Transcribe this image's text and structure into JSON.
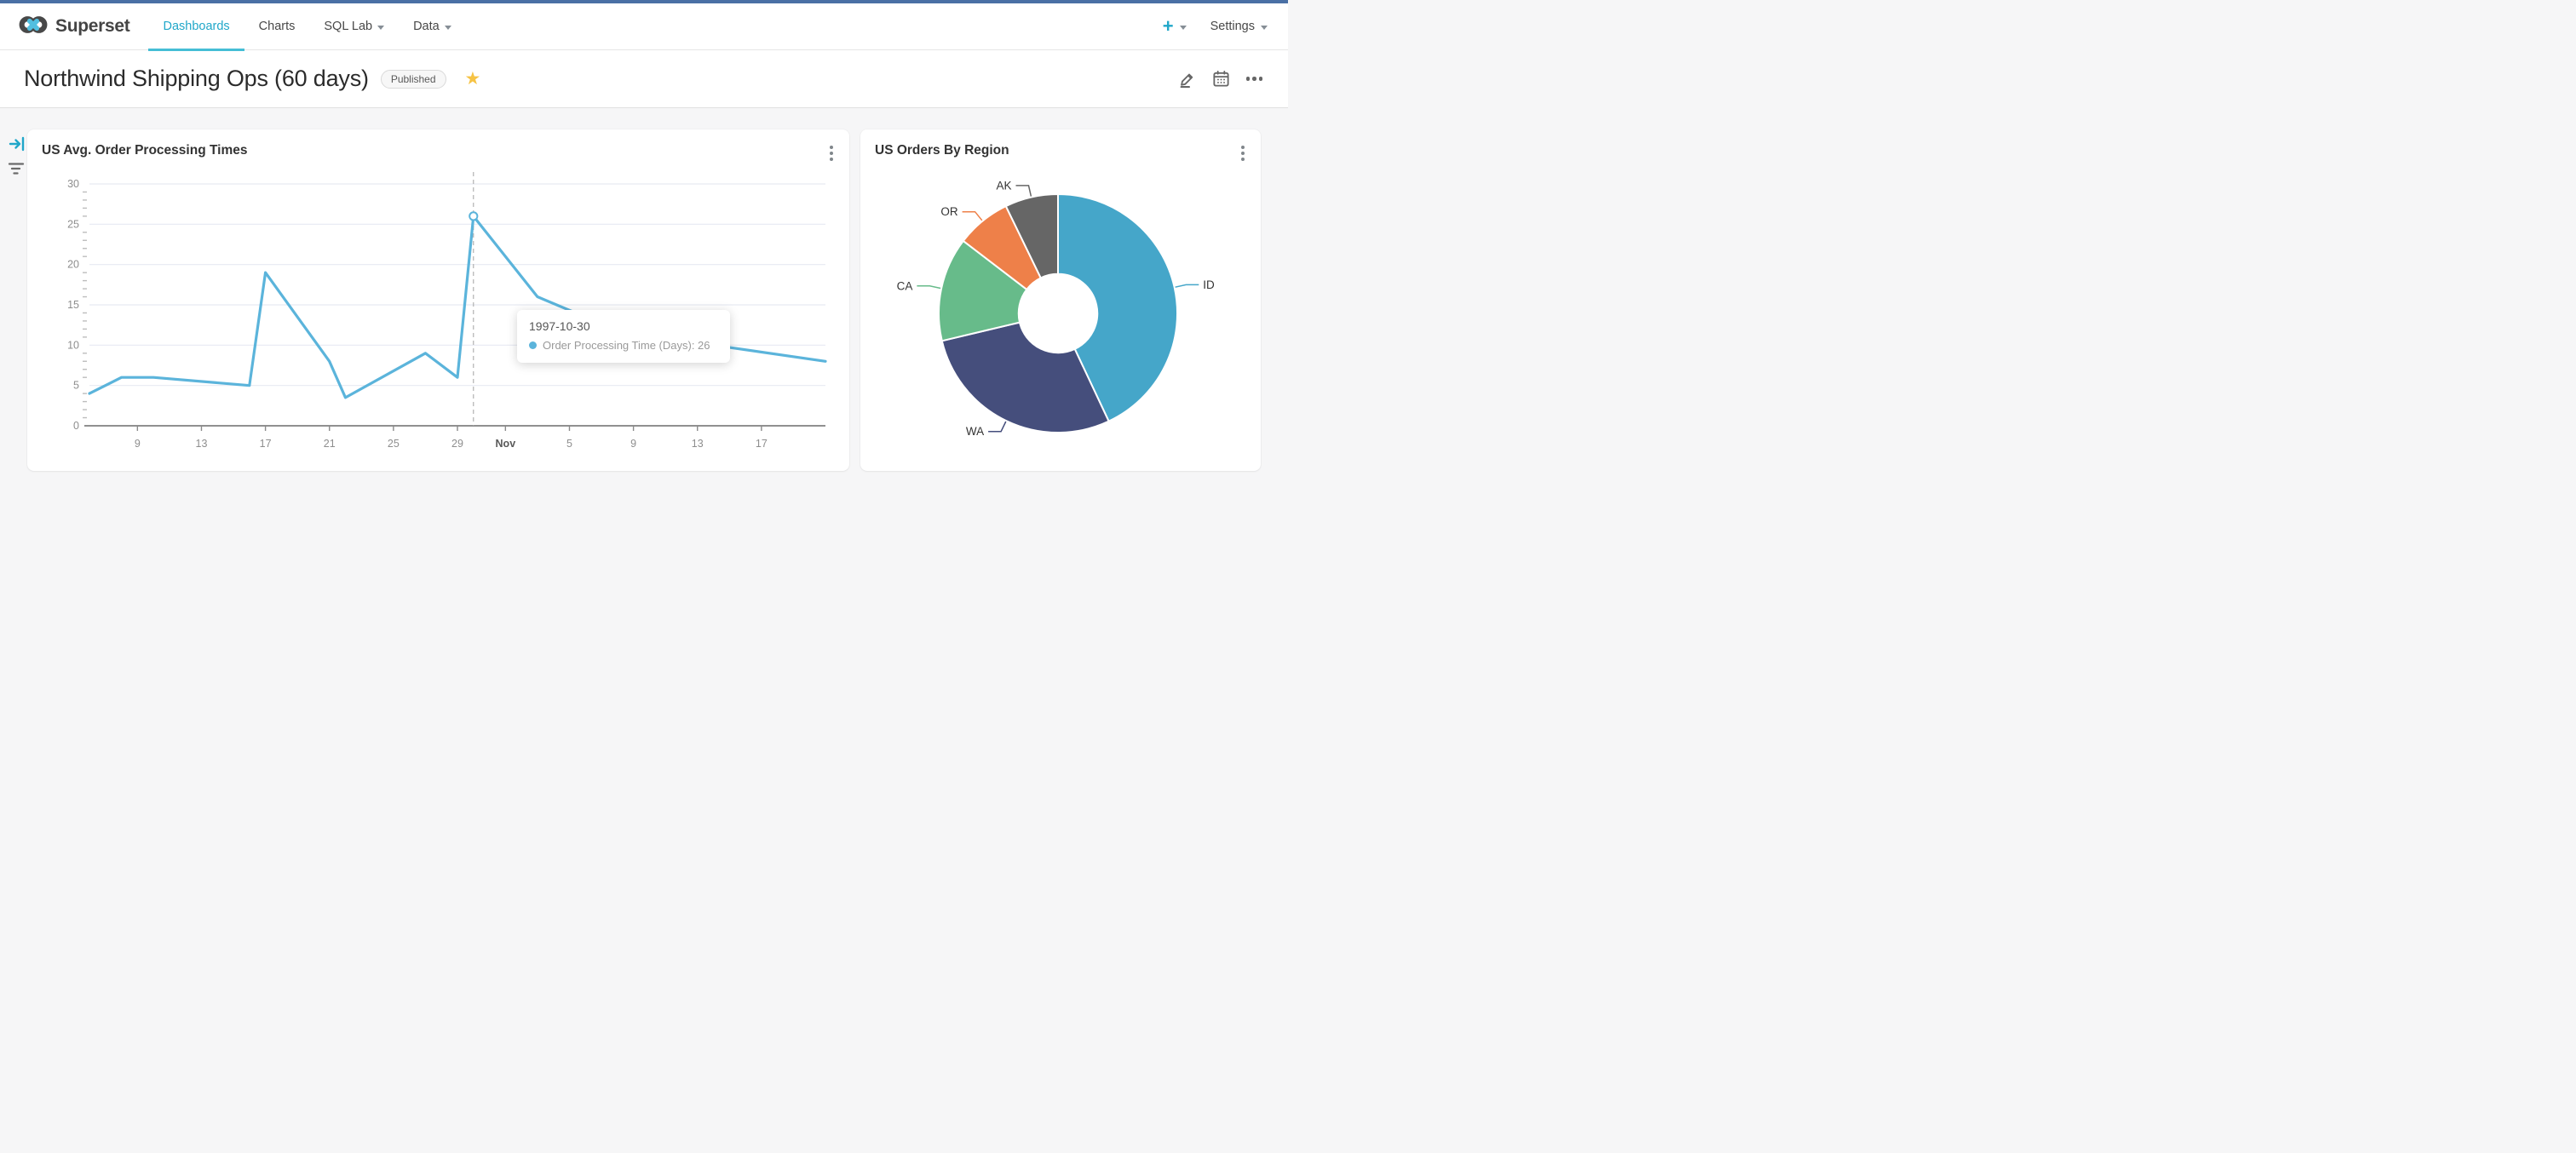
{
  "nav": {
    "brand": "Superset",
    "items": [
      {
        "label": "Dashboards",
        "active": true
      },
      {
        "label": "Charts",
        "active": false
      },
      {
        "label": "SQL Lab",
        "active": false,
        "caret": true
      },
      {
        "label": "Data",
        "active": false,
        "caret": true
      }
    ],
    "right": {
      "plus_label": "+",
      "settings_label": "Settings"
    },
    "accent_color": "#20a7c9",
    "active_underline_color": "#45bed6"
  },
  "header": {
    "title": "Northwind Shipping Ops (60 days)",
    "badge": "Published",
    "icons": [
      "edit-icon",
      "calendar-icon",
      "more-horizontal-icon"
    ],
    "star_color": "#f6c344"
  },
  "filter_rail": {
    "icons": [
      "expand-filter-bar-icon",
      "filter-list-icon"
    ]
  },
  "cards": [
    {
      "title": "US Avg. Order Processing Times"
    },
    {
      "title": "US Orders By Region"
    }
  ],
  "tooltip": {
    "date": "1997-10-30",
    "series_name": "Order Processing Time (Days)",
    "value": 26,
    "text": "Order Processing Time (Days): 26"
  },
  "chart_data": [
    {
      "type": "line",
      "title": "US Avg. Order Processing Times",
      "series_name": "Order Processing Time (Days)",
      "color": "#5bb4db",
      "x_axis": "date (Oct 6 1997 – Nov 21 1997, day offsets)",
      "x_domain_days": [
        0,
        46
      ],
      "x": [
        0,
        2,
        4,
        10,
        11,
        15,
        16,
        21,
        23,
        24,
        28,
        34,
        39,
        46
      ],
      "dates": [
        "1997-10-06",
        "1997-10-08",
        "1997-10-10",
        "1997-10-16",
        "1997-10-17",
        "1997-10-21",
        "1997-10-22",
        "1997-10-27",
        "1997-10-29",
        "1997-10-30",
        "1997-11-03",
        "1997-11-09",
        "1997-11-14",
        "1997-11-21"
      ],
      "values": [
        4,
        6,
        6,
        5,
        19,
        8,
        3.5,
        9,
        6,
        26,
        16,
        11,
        10,
        8
      ],
      "x_ticks": {
        "positions": [
          3,
          7,
          11,
          15,
          19,
          23,
          26,
          30,
          34,
          38,
          42
        ],
        "labels": [
          "9",
          "13",
          "17",
          "21",
          "25",
          "29",
          "Nov",
          "5",
          "9",
          "13",
          "17"
        ],
        "month_label_index": 6
      },
      "ylim": [
        0,
        30
      ],
      "y_major_step": 5,
      "grid": true,
      "highlight": {
        "day": 24,
        "date": "1997-10-30",
        "value": 26
      }
    },
    {
      "type": "pie",
      "subtype": "donut",
      "title": "US Orders By Region",
      "labels_outside": true,
      "inner_radius_ratio": 0.33,
      "slices": [
        {
          "label": "ID",
          "pct": 43.0,
          "color": "#45a6c9"
        },
        {
          "label": "WA",
          "pct": 28.3,
          "color": "#454e7c"
        },
        {
          "label": "CA",
          "pct": 14.1,
          "color": "#67bb8a"
        },
        {
          "label": "OR",
          "pct": 7.4,
          "color": "#ee8049"
        },
        {
          "label": "AK",
          "pct": 7.2,
          "color": "#666666"
        }
      ]
    }
  ]
}
